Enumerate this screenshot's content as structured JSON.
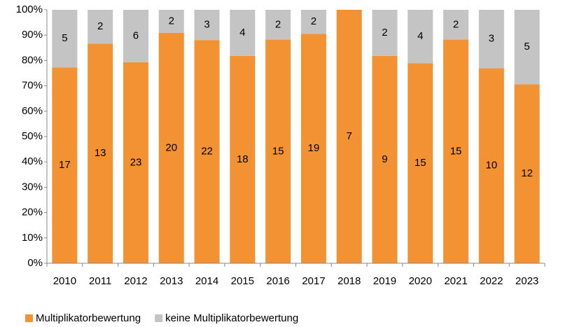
{
  "chart_data": {
    "type": "bar",
    "stack": "percent",
    "categories": [
      "2010",
      "2011",
      "2012",
      "2013",
      "2014",
      "2015",
      "2016",
      "2017",
      "2018",
      "2019",
      "2020",
      "2021",
      "2022",
      "2023"
    ],
    "series": [
      {
        "name": "Multiplikatorbewertung",
        "color": "#f39232",
        "values": [
          17,
          13,
          23,
          20,
          22,
          18,
          15,
          19,
          7,
          9,
          15,
          15,
          10,
          12
        ]
      },
      {
        "name": "keine Multiplikatorbewertung",
        "color": "#c4c4c4",
        "values": [
          5,
          2,
          6,
          2,
          3,
          4,
          2,
          2,
          0,
          2,
          4,
          2,
          3,
          5
        ]
      }
    ],
    "ylim": [
      0,
      100
    ],
    "yticks": [
      {
        "value": 0,
        "label": "0%"
      },
      {
        "value": 10,
        "label": "10%"
      },
      {
        "value": 20,
        "label": "20%"
      },
      {
        "value": 30,
        "label": "30%"
      },
      {
        "value": 40,
        "label": "40%"
      },
      {
        "value": 50,
        "label": "50%"
      },
      {
        "value": 60,
        "label": "60%"
      },
      {
        "value": 70,
        "label": "70%"
      },
      {
        "value": 80,
        "label": "80%"
      },
      {
        "value": 90,
        "label": "90%"
      },
      {
        "value": 100,
        "label": "100%"
      }
    ],
    "legend": "bottom-left"
  }
}
